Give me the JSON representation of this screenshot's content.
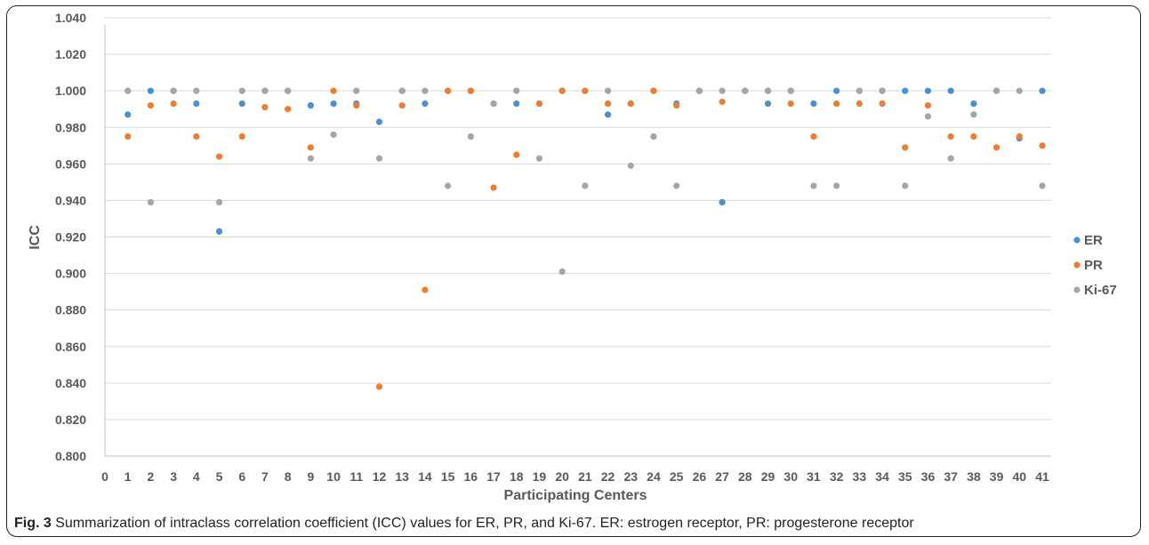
{
  "caption": {
    "label": "Fig. 3",
    "text": " Summarization of intraclass correlation coefficient (ICC) values for ER, PR, and Ki-67. ER: estrogen receptor, PR: progesterone receptor"
  },
  "chart_data": {
    "type": "scatter",
    "title": "",
    "xlabel": "Participating Centers",
    "ylabel": "ICC",
    "xlim": [
      0,
      41
    ],
    "ylim": [
      0.8,
      1.04
    ],
    "x_ticks": [
      0,
      1,
      2,
      3,
      4,
      5,
      6,
      7,
      8,
      9,
      10,
      11,
      12,
      13,
      14,
      15,
      16,
      17,
      18,
      19,
      20,
      21,
      22,
      23,
      24,
      25,
      26,
      27,
      28,
      29,
      30,
      31,
      32,
      33,
      34,
      35,
      36,
      37,
      38,
      39,
      40,
      41
    ],
    "y_ticks": [
      "0.800",
      "0.820",
      "0.840",
      "0.860",
      "0.880",
      "0.900",
      "0.920",
      "0.940",
      "0.960",
      "0.980",
      "1.000",
      "1.020",
      "1.040"
    ],
    "grid": "horizontal",
    "legend_position": "right",
    "x": [
      1,
      2,
      3,
      4,
      5,
      6,
      7,
      8,
      9,
      10,
      11,
      12,
      13,
      14,
      15,
      16,
      17,
      18,
      19,
      20,
      21,
      22,
      23,
      24,
      25,
      26,
      27,
      28,
      29,
      30,
      31,
      32,
      33,
      34,
      35,
      36,
      37,
      38,
      39,
      40,
      41
    ],
    "series": [
      {
        "name": "ER",
        "color": "#4a8fd0",
        "values": [
          0.987,
          1.0,
          1.0,
          0.993,
          0.923,
          0.993,
          1.0,
          1.0,
          0.992,
          0.993,
          0.993,
          0.983,
          1.0,
          0.993,
          1.0,
          1.0,
          0.993,
          0.993,
          0.993,
          1.0,
          1.0,
          0.987,
          0.993,
          1.0,
          0.993,
          1.0,
          0.939,
          1.0,
          0.993,
          1.0,
          0.993,
          1.0,
          1.0,
          1.0,
          1.0,
          1.0,
          1.0,
          0.993,
          1.0,
          0.974,
          1.0
        ]
      },
      {
        "name": "PR",
        "color": "#ed7d31",
        "values": [
          0.975,
          0.992,
          0.993,
          0.975,
          0.964,
          0.975,
          0.991,
          0.99,
          0.969,
          1.0,
          0.992,
          0.838,
          0.992,
          0.891,
          1.0,
          1.0,
          0.947,
          0.965,
          0.993,
          1.0,
          1.0,
          0.993,
          0.993,
          1.0,
          0.992,
          1.0,
          0.994,
          1.0,
          1.0,
          0.993,
          0.975,
          0.993,
          0.993,
          0.993,
          0.969,
          0.992,
          0.975,
          0.975,
          0.969,
          0.975,
          0.97
        ]
      },
      {
        "name": "Ki-67",
        "color": "#a5a5a5",
        "values": [
          1.0,
          0.939,
          1.0,
          1.0,
          0.939,
          1.0,
          1.0,
          1.0,
          0.963,
          0.976,
          1.0,
          0.963,
          1.0,
          1.0,
          0.948,
          0.975,
          0.993,
          1.0,
          0.963,
          0.901,
          0.948,
          1.0,
          0.959,
          0.975,
          0.948,
          1.0,
          1.0,
          1.0,
          1.0,
          1.0,
          0.948,
          0.948,
          1.0,
          1.0,
          0.948,
          0.986,
          0.963,
          0.987,
          1.0,
          1.0,
          0.948
        ]
      }
    ]
  }
}
